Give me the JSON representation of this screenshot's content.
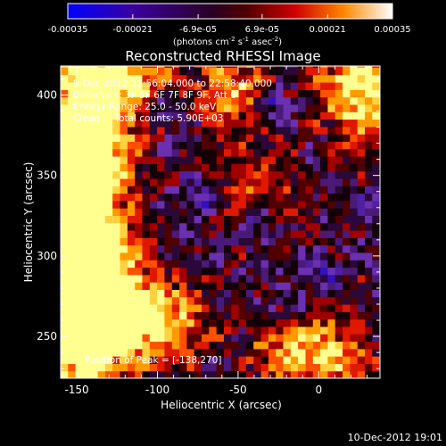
{
  "colorbar": {
    "tick_labels": [
      "-0.00035",
      "-0.00021",
      "-6.9e-05",
      "6.9e-05",
      "0.00021",
      "0.00035"
    ],
    "tick_values": [
      -0.00035,
      -0.00021,
      -6.9e-05,
      6.9e-05,
      0.00021,
      0.00035
    ],
    "range": [
      -0.00035,
      0.00035
    ],
    "units_main": "(photons cm",
    "units_sup1": "-2",
    "units_mid1": " s",
    "units_sup2": "-1",
    "units_mid2": " asec",
    "units_sup3": "-2",
    "units_end": ")"
  },
  "title": "Reconstructed RHESSI Image",
  "annotations": {
    "time_range": "9-Dec-2012 22:56:04.000 to 22:58:40.000",
    "detectors": "Detectors: 3F 5F 6F 7F 8F 9F, Att 0",
    "energy": "Energy Range: 25.0 - 50.0 keV",
    "clean": "Clean     Total counts: 5.90E+03",
    "peak": "Position of Peak = [-138,270]"
  },
  "axes": {
    "xlabel": "Heliocentric X (arcsec)",
    "ylabel": "Heliocentric Y (arcsec)",
    "x_ticks": [
      "-150",
      "-100",
      "-50",
      "0"
    ],
    "y_ticks": [
      "250",
      "300",
      "350",
      "400"
    ]
  },
  "footer_timestamp": "10-Dec-2012 19:01",
  "chart_data": {
    "type": "heatmap",
    "title": "Reconstructed RHESSI Image",
    "xlabel": "Heliocentric X (arcsec)",
    "ylabel": "Heliocentric Y (arcsec)",
    "xlim": [
      -160,
      38
    ],
    "ylim": [
      224,
      418
    ],
    "x_tick_values": [
      -150,
      -100,
      -50,
      0
    ],
    "y_tick_values": [
      250,
      300,
      350,
      400
    ],
    "colorbar_range": [
      -0.00035,
      0.00035
    ],
    "colormap": [
      "#0000ff",
      "#3a0088",
      "#6a2aa0",
      "#5a2a8a",
      "#2a0a3a",
      "#6a0000",
      "#c00000",
      "#ff3000",
      "#ff9000",
      "#ffe070",
      "#ffffff"
    ],
    "peak_position": [
      -138,
      270
    ],
    "bright_regions": [
      {
        "x": -148,
        "y": 360,
        "intensity": 0.95
      },
      {
        "x": -140,
        "y": 300,
        "intensity": 0.75
      },
      {
        "x": -130,
        "y": 262,
        "intensity": 1.0
      },
      {
        "x": -95,
        "y": 255,
        "intensity": 0.7
      },
      {
        "x": -120,
        "y": 410,
        "intensity": 0.7
      },
      {
        "x": 20,
        "y": 412,
        "intensity": 0.75
      },
      {
        "x": 30,
        "y": 385,
        "intensity": 0.55
      },
      {
        "x": -55,
        "y": 400,
        "intensity": 0.6
      },
      {
        "x": -40,
        "y": 340,
        "intensity": 0.45
      },
      {
        "x": -20,
        "y": 240,
        "intensity": 0.6
      },
      {
        "x": 10,
        "y": 235,
        "intensity": 0.55
      }
    ],
    "negative_regions": [
      {
        "x": -95,
        "y": 390,
        "intensity": 0.6
      },
      {
        "x": -30,
        "y": 395,
        "intensity": 0.7
      },
      {
        "x": -75,
        "y": 335,
        "intensity": 0.5
      },
      {
        "x": -40,
        "y": 320,
        "intensity": 0.6
      },
      {
        "x": 0,
        "y": 290,
        "intensity": 0.55
      },
      {
        "x": -20,
        "y": 265,
        "intensity": 0.5
      },
      {
        "x": 30,
        "y": 330,
        "intensity": 0.5
      }
    ]
  }
}
